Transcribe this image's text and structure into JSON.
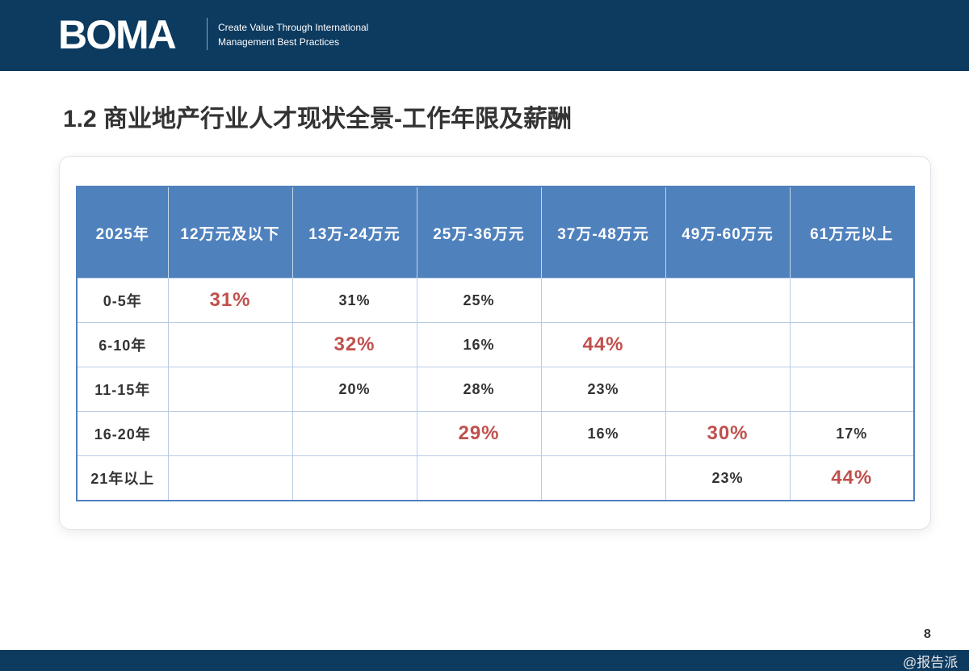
{
  "header": {
    "logo": "BOMA",
    "tagline": [
      "Create Value Through International",
      "Management Best Practices"
    ]
  },
  "title": "1.2 商业地产行业人才现状全景-工作年限及薪酬",
  "table": {
    "columns": [
      "2025年",
      "12万元及以下",
      "13万-24万元",
      "25万-36万元",
      "37万-48万元",
      "49万-60万元",
      "61万元以上"
    ],
    "rows": [
      {
        "label": "0-5年",
        "cells": [
          "31%",
          "31%",
          "25%",
          null,
          null,
          null
        ],
        "highlight": [
          0
        ]
      },
      {
        "label": "6-10年",
        "cells": [
          null,
          "32%",
          "16%",
          "44%",
          null,
          null
        ],
        "highlight": [
          1,
          3
        ]
      },
      {
        "label": "11-15年",
        "cells": [
          null,
          "20%",
          "28%",
          "23%",
          null,
          null
        ],
        "highlight": []
      },
      {
        "label": "16-20年",
        "cells": [
          null,
          null,
          "29%",
          "16%",
          "30%",
          "17%"
        ],
        "highlight": [
          2,
          4
        ]
      },
      {
        "label": "21年以上",
        "cells": [
          null,
          null,
          null,
          null,
          "23%",
          "44%"
        ],
        "highlight": [
          5
        ]
      }
    ]
  },
  "page_number": "8",
  "watermark": "@报告派"
}
